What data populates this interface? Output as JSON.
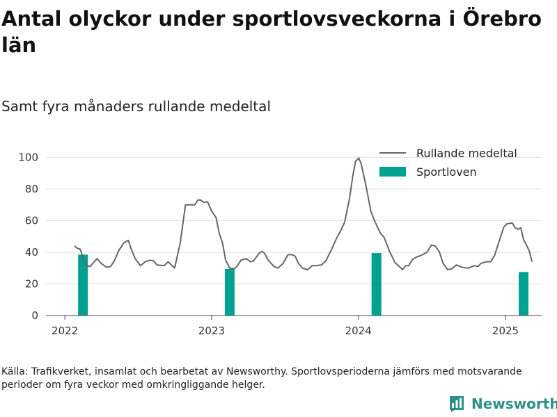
{
  "title": "Antal olyckor under sportlovsveckorna i Örebro län",
  "subtitle": "Samt fyra månaders rullande medeltal",
  "source": "Källa: Trafikverket, insamlat och bearbetat av Newsworthy. Sportlovsperioderna jämförs med motsvarande perioder om fyra veckor med omkringliggande helger.",
  "brand": {
    "name": "Newsworthy",
    "color": "#2e8f8a",
    "icon": "bar-chart-logo-icon"
  },
  "chart_data": {
    "type": "bar",
    "title": "Antal olyckor under sportlovsveckorna i Örebro län",
    "subtitle": "Samt fyra månaders rullande medeltal",
    "xlabel": "",
    "ylabel": "",
    "ylim": [
      0,
      105
    ],
    "xlim": [
      "2021-11-15",
      "2025-04-01"
    ],
    "yticks": [
      0,
      20,
      40,
      60,
      80,
      100
    ],
    "xticks": [
      "2022",
      "2023",
      "2024",
      "2025"
    ],
    "grid": true,
    "legend_position": "top-right",
    "series": [
      {
        "name": "Rullande medeltal",
        "type": "line",
        "color": "#666666",
        "points": [
          [
            "2022-01-25",
            44
          ],
          [
            "2022-02-01",
            42.5
          ],
          [
            "2022-02-08",
            42
          ],
          [
            "2022-02-15",
            37
          ],
          [
            "2022-02-22",
            31.5
          ],
          [
            "2022-03-05",
            31
          ],
          [
            "2022-03-15",
            34
          ],
          [
            "2022-03-22",
            36
          ],
          [
            "2022-04-01",
            33
          ],
          [
            "2022-04-15",
            30.5
          ],
          [
            "2022-04-25",
            31
          ],
          [
            "2022-05-05",
            35
          ],
          [
            "2022-05-15",
            41
          ],
          [
            "2022-05-28",
            46
          ],
          [
            "2022-06-08",
            47.5
          ],
          [
            "2022-06-15",
            42
          ],
          [
            "2022-06-25",
            36
          ],
          [
            "2022-07-08",
            31.5
          ],
          [
            "2022-07-20",
            34
          ],
          [
            "2022-08-01",
            35
          ],
          [
            "2022-08-10",
            34.5
          ],
          [
            "2022-08-18",
            32
          ],
          [
            "2022-09-05",
            31.5
          ],
          [
            "2022-09-15",
            34
          ],
          [
            "2022-09-25",
            31.5
          ],
          [
            "2022-10-01",
            30
          ],
          [
            "2022-10-15",
            46
          ],
          [
            "2022-10-28",
            70
          ],
          [
            "2022-11-10",
            70
          ],
          [
            "2022-11-20",
            70
          ],
          [
            "2022-11-28",
            73
          ],
          [
            "2022-12-05",
            73
          ],
          [
            "2022-12-12",
            71.5
          ],
          [
            "2022-12-22",
            72
          ],
          [
            "2023-01-01",
            66
          ],
          [
            "2023-01-12",
            62
          ],
          [
            "2023-01-20",
            52
          ],
          [
            "2023-01-28",
            46
          ],
          [
            "2023-02-05",
            35
          ],
          [
            "2023-02-15",
            30
          ],
          [
            "2023-02-25",
            29.5
          ],
          [
            "2023-03-05",
            31
          ],
          [
            "2023-03-15",
            35
          ],
          [
            "2023-03-28",
            36
          ],
          [
            "2023-04-08",
            34
          ],
          [
            "2023-04-15",
            34.5
          ],
          [
            "2023-04-28",
            39
          ],
          [
            "2023-05-05",
            40.5
          ],
          [
            "2023-05-12",
            39.5
          ],
          [
            "2023-05-22",
            35
          ],
          [
            "2023-06-05",
            31
          ],
          [
            "2023-06-15",
            30
          ],
          [
            "2023-06-28",
            33
          ],
          [
            "2023-07-10",
            38.5
          ],
          [
            "2023-07-20",
            38.5
          ],
          [
            "2023-07-28",
            37.5
          ],
          [
            "2023-08-05",
            33
          ],
          [
            "2023-08-15",
            30
          ],
          [
            "2023-08-28",
            29
          ],
          [
            "2023-09-08",
            31.5
          ],
          [
            "2023-09-18",
            31.5
          ],
          [
            "2023-10-01",
            32
          ],
          [
            "2023-10-12",
            34.5
          ],
          [
            "2023-10-25",
            41
          ],
          [
            "2023-11-08",
            49
          ],
          [
            "2023-11-18",
            53.5
          ],
          [
            "2023-11-28",
            59
          ],
          [
            "2023-12-10",
            74
          ],
          [
            "2023-12-18",
            88
          ],
          [
            "2023-12-25",
            97.5
          ],
          [
            "2024-01-02",
            99.5
          ],
          [
            "2024-01-08",
            96
          ],
          [
            "2024-01-20",
            82
          ],
          [
            "2024-02-01",
            66
          ],
          [
            "2024-02-10",
            60
          ],
          [
            "2024-02-25",
            52
          ],
          [
            "2024-03-05",
            49.5
          ],
          [
            "2024-03-18",
            41
          ],
          [
            "2024-04-01",
            33.5
          ],
          [
            "2024-04-10",
            31.5
          ],
          [
            "2024-04-20",
            29
          ],
          [
            "2024-04-28",
            31.5
          ],
          [
            "2024-05-05",
            31.5
          ],
          [
            "2024-05-15",
            35.5
          ],
          [
            "2024-05-25",
            37
          ],
          [
            "2024-06-05",
            38
          ],
          [
            "2024-06-20",
            40
          ],
          [
            "2024-06-30",
            44.5
          ],
          [
            "2024-07-10",
            44
          ],
          [
            "2024-07-20",
            40.5
          ],
          [
            "2024-07-30",
            33
          ],
          [
            "2024-08-10",
            29
          ],
          [
            "2024-08-20",
            29.5
          ],
          [
            "2024-09-01",
            32
          ],
          [
            "2024-09-15",
            30.5
          ],
          [
            "2024-10-01",
            30
          ],
          [
            "2024-10-15",
            31.5
          ],
          [
            "2024-10-25",
            31
          ],
          [
            "2024-11-01",
            33
          ],
          [
            "2024-11-15",
            34
          ],
          [
            "2024-11-25",
            34
          ],
          [
            "2024-12-05",
            38
          ],
          [
            "2024-12-15",
            46
          ],
          [
            "2024-12-28",
            56
          ],
          [
            "2025-01-05",
            58
          ],
          [
            "2025-01-18",
            58.5
          ],
          [
            "2025-01-25",
            55.5
          ],
          [
            "2025-02-01",
            54.5
          ],
          [
            "2025-02-08",
            55.5
          ],
          [
            "2025-02-15",
            48
          ],
          [
            "2025-03-01",
            41
          ],
          [
            "2025-03-08",
            34
          ]
        ]
      },
      {
        "name": "Sportloven",
        "type": "bar",
        "color": "#00a191",
        "categories": [
          "2022-02-15",
          "2023-02-15",
          "2024-02-15",
          "2025-02-15"
        ],
        "values": [
          38.5,
          29.5,
          39.5,
          27.5
        ]
      }
    ]
  }
}
